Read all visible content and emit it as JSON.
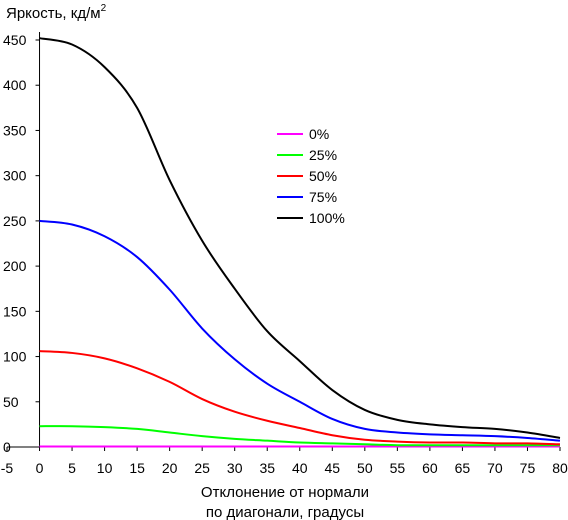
{
  "chart_data": {
    "type": "line",
    "ylabel": "Яркость, кд/м",
    "ylabel_sup": "2",
    "xlabel_line1": "Отклонение от нормали",
    "xlabel_line2": "по диагонали, градусы",
    "xlim": [
      -5,
      80
    ],
    "ylim": [
      0,
      450
    ],
    "x_ticks": [
      -5,
      0,
      5,
      10,
      15,
      20,
      25,
      30,
      35,
      40,
      45,
      50,
      55,
      60,
      65,
      70,
      75,
      80
    ],
    "y_ticks": [
      0,
      50,
      100,
      150,
      200,
      250,
      300,
      350,
      400,
      450
    ],
    "grid": false,
    "legend_position": "center-right",
    "x": [
      0,
      5,
      10,
      15,
      20,
      25,
      30,
      35,
      40,
      45,
      50,
      55,
      60,
      65,
      70,
      75,
      80
    ],
    "series": [
      {
        "name": "0%",
        "color": "#ff00ff",
        "values": [
          0.5,
          0.5,
          0.5,
          0.6,
          0.6,
          0.6,
          0.6,
          0.5,
          0.5,
          0.5,
          0.5,
          0.5,
          0.5,
          0.5,
          0.5,
          0.5,
          0.5
        ]
      },
      {
        "name": "25%",
        "color": "#00ff00",
        "values": [
          23,
          23,
          22,
          20,
          16,
          12,
          9,
          7,
          5,
          4,
          3,
          2,
          2,
          2,
          2,
          2,
          2
        ]
      },
      {
        "name": "50%",
        "color": "#ff0000",
        "values": [
          106,
          104,
          98,
          87,
          72,
          53,
          39,
          29,
          21,
          13,
          8,
          6,
          5,
          5,
          4,
          4,
          3
        ]
      },
      {
        "name": "75%",
        "color": "#0000ff",
        "values": [
          250,
          246,
          233,
          210,
          174,
          131,
          97,
          70,
          50,
          31,
          20,
          16,
          14,
          13,
          12,
          10,
          7
        ]
      },
      {
        "name": "100%",
        "color": "#000000",
        "values": [
          452,
          445,
          420,
          375,
          295,
          228,
          175,
          128,
          95,
          63,
          41,
          30,
          25,
          22,
          20,
          16,
          10
        ]
      }
    ]
  }
}
